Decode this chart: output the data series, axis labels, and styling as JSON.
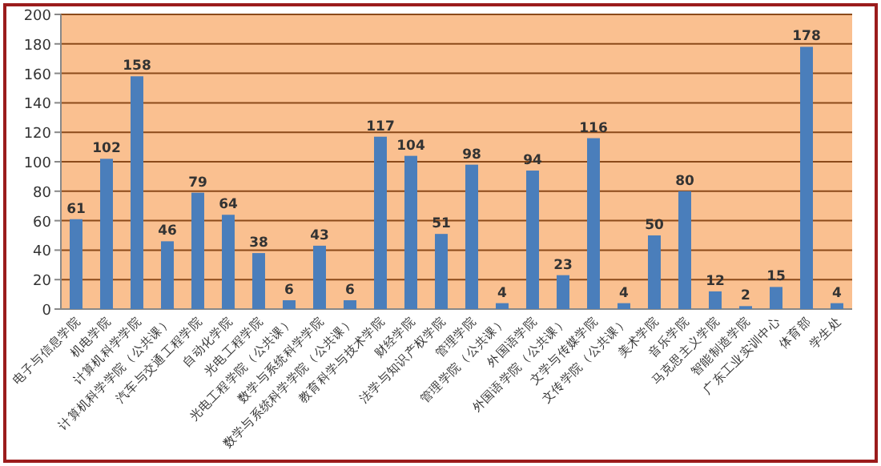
{
  "chart_data": {
    "type": "bar",
    "categories": [
      "电子与信息学院",
      "机电学院",
      "计算机科学学院",
      "计算机科学学院（公共课）",
      "汽车与交通工程学院",
      "自动化学院",
      "光电工程学院",
      "光电工程学院（公共课）",
      "数学与系统科学学院",
      "数学与系统科学学院（公共课）",
      "教育科学与技术学院",
      "财经学院",
      "法学与知识产权学院",
      "管理学院",
      "管理学院（公共课）",
      "外国语学院",
      "外国语学院（公共课）",
      "文学与传媒学院",
      "文传学院（公共课）",
      "美术学院",
      "音乐学院",
      "马克思主义学院",
      "智能制造学院",
      "广东工业实训中心",
      "体育部",
      "学生处"
    ],
    "series": [
      {
        "color": "#4a7ebb",
        "values": [
          61,
          102,
          158,
          46,
          79,
          64,
          38,
          6,
          43,
          6,
          117,
          104,
          51,
          98,
          4,
          94,
          23,
          116,
          4,
          50,
          80,
          12,
          2,
          15,
          178,
          4
        ]
      }
    ],
    "ylim": [
      0,
      200
    ],
    "yticks": [
      0,
      20,
      40,
      60,
      80,
      100,
      120,
      140,
      160,
      180,
      200
    ],
    "grid": "y",
    "data_labels": true
  }
}
